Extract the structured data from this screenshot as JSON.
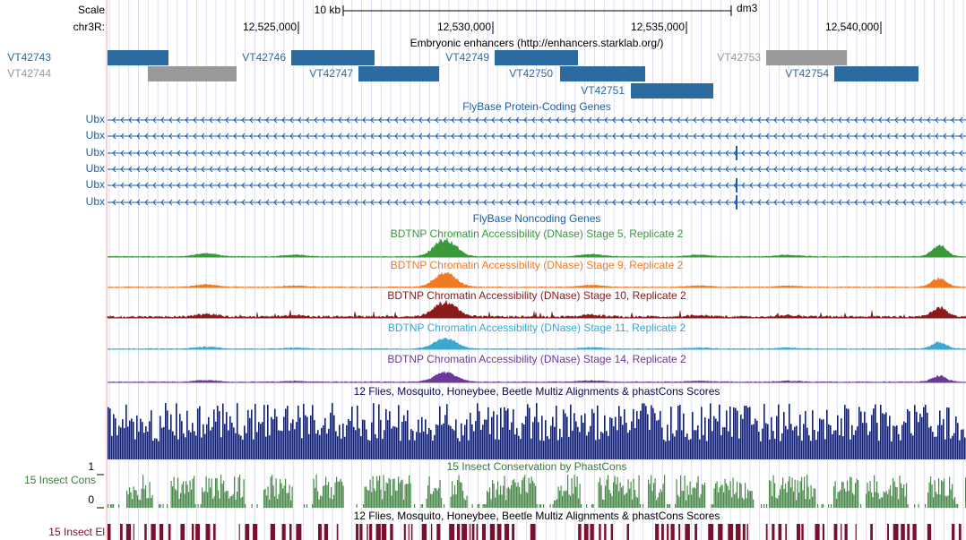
{
  "ruler": {
    "scale_label": "Scale",
    "scale_bar": "10 kb",
    "assembly": "dm3",
    "chrom": "chr3R:",
    "ticks": [
      "12,525,000",
      "12,530,000",
      "12,535,000",
      "12,540,000"
    ]
  },
  "tracks": {
    "enhancers": {
      "title": "Embryonic enhancers (http://enhancers.starklab.org/)",
      "items": [
        {
          "name": "VT42743",
          "color": "#2c6aa0"
        },
        {
          "name": "VT42744",
          "color": "#999999"
        },
        {
          "name": "VT42746",
          "color": "#2c6aa0"
        },
        {
          "name": "VT42747",
          "color": "#2c6aa0"
        },
        {
          "name": "VT42749",
          "color": "#2c6aa0"
        },
        {
          "name": "VT42750",
          "color": "#2c6aa0"
        },
        {
          "name": "VT42751",
          "color": "#2c6aa0"
        },
        {
          "name": "VT42753",
          "color": "#999999"
        },
        {
          "name": "VT42754",
          "color": "#2c6aa0"
        }
      ]
    },
    "genes": {
      "title": "FlyBase Protein-Coding Genes",
      "items": [
        "Ubx",
        "Ubx",
        "Ubx",
        "Ubx",
        "Ubx",
        "Ubx"
      ]
    },
    "noncoding": {
      "title": "FlyBase Noncoding Genes"
    },
    "dnase": [
      {
        "title": "BDTNP Chromatin Accessibility (DNase) Stage 5, Replicate 2",
        "color": "#3a9a3a"
      },
      {
        "title": "BDTNP Chromatin Accessibility (DNase) Stage 9, Replicate 2",
        "color": "#f07a22"
      },
      {
        "title": "BDTNP Chromatin Accessibility (DNase) Stage 10, Replicate 2",
        "color": "#8b1a1a"
      },
      {
        "title": "BDTNP Chromatin Accessibility (DNase) Stage 11, Replicate 2",
        "color": "#3aa8d0"
      },
      {
        "title": "BDTNP Chromatin Accessibility (DNase) Stage 14, Replicate 2",
        "color": "#6a3a9a"
      }
    ],
    "multiz": {
      "title": "12 Flies, Mosquito, Honeybee, Beetle Multiz Alignments & phastCons Scores"
    },
    "cons": {
      "label": "15 Insect Cons",
      "title": "15 Insect Conservation by PhastCons",
      "max": "1",
      "min": "0"
    },
    "elements": {
      "title": "12 Flies, Mosquito, Honeybee, Beetle Multiz Alignments & phastCons Scores",
      "label": "15 Insect El"
    }
  }
}
